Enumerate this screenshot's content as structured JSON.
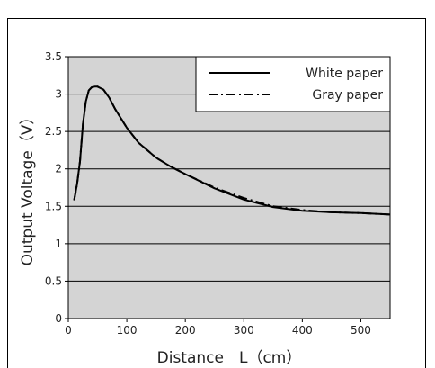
{
  "chart_data": {
    "type": "line",
    "xlabel": "Distance　L（cm）",
    "ylabel": "Output Voltage（V）",
    "xlim": [
      0,
      550
    ],
    "ylim": [
      0,
      3.5
    ],
    "xticks": [
      "0",
      "100",
      "200",
      "300",
      "400",
      "500"
    ],
    "yticks": [
      "0",
      "0.5",
      "1",
      "1.5",
      "2",
      "2.5",
      "3",
      "3.5"
    ],
    "grid": "horizontal",
    "background": "#d4d4d4",
    "legend_position": "top-right",
    "series": [
      {
        "name": "White paper",
        "style": "solid",
        "x": [
          10,
          15,
          20,
          25,
          30,
          35,
          40,
          45,
          50,
          60,
          70,
          80,
          100,
          120,
          150,
          175,
          200,
          250,
          300,
          350,
          400,
          450,
          500,
          550
        ],
        "y": [
          1.58,
          1.8,
          2.1,
          2.6,
          2.9,
          3.05,
          3.09,
          3.1,
          3.1,
          3.06,
          2.95,
          2.8,
          2.55,
          2.35,
          2.15,
          2.03,
          1.93,
          1.74,
          1.59,
          1.49,
          1.44,
          1.42,
          1.41,
          1.39
        ]
      },
      {
        "name": "Gray paper",
        "style": "dash-dot",
        "x": [
          10,
          15,
          20,
          25,
          30,
          35,
          40,
          45,
          50,
          60,
          70,
          80,
          100,
          120,
          150,
          175,
          200,
          250,
          300,
          350,
          400,
          450,
          500,
          550
        ],
        "y": [
          1.58,
          1.8,
          2.1,
          2.6,
          2.9,
          3.05,
          3.09,
          3.1,
          3.1,
          3.06,
          2.95,
          2.8,
          2.55,
          2.35,
          2.15,
          2.03,
          1.93,
          1.75,
          1.61,
          1.5,
          1.45,
          1.42,
          1.41,
          1.39
        ]
      }
    ]
  }
}
